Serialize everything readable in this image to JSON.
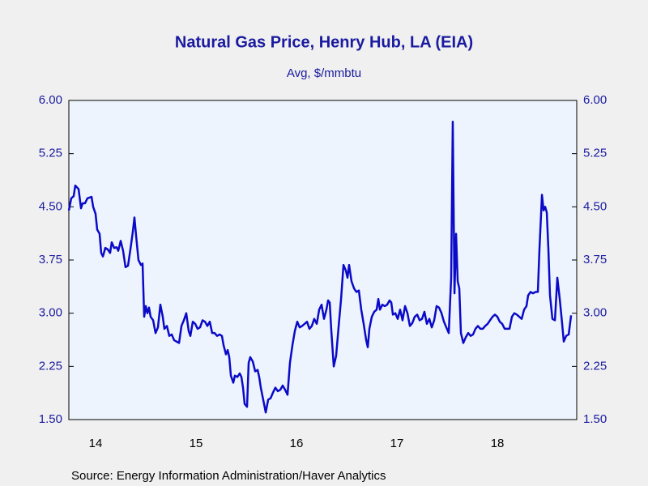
{
  "chart_data": {
    "type": "line",
    "title": "Natural Gas Price, Henry Hub, LA (EIA)",
    "subtitle": "Avg, $/mmbtu",
    "source": "Source:  Energy Information Administration/Haver Analytics",
    "xlim": [
      2014.234,
      2019.29
    ],
    "xticks": [
      {
        "value": 2014.5,
        "label": "14"
      },
      {
        "value": 2015.5,
        "label": "15"
      },
      {
        "value": 2016.5,
        "label": "16"
      },
      {
        "value": 2017.5,
        "label": "17"
      },
      {
        "value": 2018.5,
        "label": "18"
      }
    ],
    "ylim": [
      1.5,
      6
    ],
    "yticks": [
      {
        "value": 1.5,
        "label": "1.50"
      },
      {
        "value": 2.25,
        "label": "2.25"
      },
      {
        "value": 3,
        "label": "3.00"
      },
      {
        "value": 3.75,
        "label": "3.75"
      },
      {
        "value": 4.5,
        "label": "4.50"
      },
      {
        "value": 5.25,
        "label": "5.25"
      },
      {
        "value": 6,
        "label": "6.00"
      }
    ],
    "grid": false,
    "x": [
      2014.234,
      2014.258,
      2014.282,
      2014.298,
      2014.331,
      2014.355,
      2014.371,
      2014.395,
      2014.419,
      2014.46,
      2014.476,
      2014.5,
      2014.516,
      2014.54,
      2014.556,
      2014.573,
      2014.597,
      2014.621,
      2014.645,
      2014.661,
      2014.685,
      2014.71,
      2014.726,
      2014.75,
      2014.774,
      2014.798,
      2014.823,
      2014.847,
      2014.871,
      2014.887,
      2014.903,
      2014.927,
      2014.952,
      2014.968,
      2014.984,
      2015.0,
      2015.016,
      2015.032,
      2015.048,
      2015.073,
      2015.097,
      2015.121,
      2015.145,
      2015.169,
      2015.185,
      2015.21,
      2015.234,
      2015.258,
      2015.282,
      2015.306,
      2015.331,
      2015.355,
      2015.379,
      2015.403,
      2015.427,
      2015.444,
      2015.468,
      2015.492,
      2015.516,
      2015.54,
      2015.565,
      2015.589,
      2015.613,
      2015.637,
      2015.661,
      2015.685,
      2015.71,
      2015.734,
      2015.758,
      2015.774,
      2015.798,
      2015.815,
      2015.831,
      2015.847,
      2015.871,
      2015.887,
      2015.911,
      2015.935,
      2015.952,
      2015.968,
      2015.984,
      2016.008,
      2016.024,
      2016.04,
      2016.065,
      2016.089,
      2016.113,
      2016.129,
      2016.145,
      2016.169,
      2016.194,
      2016.218,
      2016.242,
      2016.266,
      2016.29,
      2016.315,
      2016.339,
      2016.363,
      2016.387,
      2016.411,
      2016.435,
      2016.46,
      2016.484,
      2016.508,
      2016.532,
      2016.556,
      2016.581,
      2016.605,
      2016.629,
      2016.653,
      2016.677,
      2016.702,
      2016.726,
      2016.75,
      2016.774,
      2016.798,
      2016.815,
      2016.831,
      2016.847,
      2016.871,
      2016.895,
      2016.919,
      2016.944,
      2016.968,
      2016.992,
      2017.008,
      2017.024,
      2017.048,
      2017.073,
      2017.097,
      2017.121,
      2017.145,
      2017.169,
      2017.194,
      2017.21,
      2017.226,
      2017.25,
      2017.274,
      2017.298,
      2017.315,
      2017.331,
      2017.355,
      2017.379,
      2017.403,
      2017.427,
      2017.444,
      2017.46,
      2017.484,
      2017.508,
      2017.532,
      2017.556,
      2017.581,
      2017.605,
      2017.629,
      2017.653,
      2017.677,
      2017.702,
      2017.726,
      2017.75,
      2017.774,
      2017.798,
      2017.823,
      2017.847,
      2017.871,
      2017.895,
      2017.919,
      2017.944,
      2017.968,
      2017.992,
      2018.016,
      2018.04,
      2018.056,
      2018.073,
      2018.089,
      2018.105,
      2018.121,
      2018.137,
      2018.161,
      2018.185,
      2018.21,
      2018.234,
      2018.258,
      2018.282,
      2018.306,
      2018.331,
      2018.355,
      2018.379,
      2018.403,
      2018.427,
      2018.452,
      2018.476,
      2018.5,
      2018.524,
      2018.548,
      2018.573,
      2018.597,
      2018.621,
      2018.645,
      2018.669,
      2018.694,
      2018.718,
      2018.742,
      2018.766,
      2018.79,
      2018.806,
      2018.831,
      2018.855,
      2018.879,
      2018.903,
      2018.919,
      2018.944,
      2018.96,
      2018.976,
      2018.992,
      2019.008,
      2019.024,
      2019.048,
      2019.073,
      2019.097,
      2019.121,
      2019.145,
      2019.161,
      2019.185,
      2019.21,
      2019.234
    ],
    "series": [
      {
        "color": "#0a0ac8",
        "values": [
          4.45,
          4.62,
          4.65,
          4.8,
          4.75,
          4.48,
          4.55,
          4.55,
          4.62,
          4.64,
          4.5,
          4.4,
          4.18,
          4.12,
          3.85,
          3.8,
          3.92,
          3.9,
          3.85,
          4.0,
          3.92,
          3.93,
          3.88,
          4.02,
          3.88,
          3.65,
          3.67,
          3.9,
          4.15,
          4.35,
          4.1,
          3.75,
          3.68,
          3.7,
          2.95,
          3.1,
          3.0,
          3.08,
          2.95,
          2.9,
          2.72,
          2.8,
          3.12,
          2.95,
          2.78,
          2.82,
          2.68,
          2.7,
          2.62,
          2.6,
          2.58,
          2.82,
          2.9,
          3.0,
          2.75,
          2.68,
          2.88,
          2.85,
          2.78,
          2.8,
          2.9,
          2.88,
          2.82,
          2.88,
          2.72,
          2.72,
          2.68,
          2.7,
          2.68,
          2.55,
          2.42,
          2.48,
          2.38,
          2.12,
          2.02,
          2.12,
          2.1,
          2.15,
          2.1,
          1.95,
          1.72,
          1.68,
          2.3,
          2.38,
          2.32,
          2.18,
          2.2,
          2.1,
          1.95,
          1.78,
          1.6,
          1.78,
          1.8,
          1.88,
          1.95,
          1.9,
          1.92,
          1.98,
          1.92,
          1.85,
          2.3,
          2.55,
          2.75,
          2.88,
          2.8,
          2.82,
          2.85,
          2.88,
          2.78,
          2.82,
          2.92,
          2.85,
          3.05,
          3.12,
          2.92,
          3.05,
          3.18,
          3.15,
          2.75,
          2.25,
          2.4,
          2.8,
          3.2,
          3.68,
          3.6,
          3.5,
          3.68,
          3.45,
          3.35,
          3.3,
          3.32,
          3.05,
          2.85,
          2.62,
          2.52,
          2.78,
          2.95,
          3.02,
          3.05,
          3.2,
          3.05,
          3.12,
          3.1,
          3.12,
          3.18,
          3.15,
          2.98,
          3.0,
          2.92,
          3.05,
          2.9,
          3.1,
          3.0,
          2.82,
          2.86,
          2.95,
          2.98,
          2.9,
          2.92,
          3.02,
          2.85,
          2.92,
          2.8,
          2.9,
          3.1,
          3.08,
          3.0,
          2.88,
          2.8,
          2.72,
          3.5,
          5.7,
          3.28,
          4.12,
          3.45,
          3.35,
          2.72,
          2.58,
          2.66,
          2.72,
          2.68,
          2.7,
          2.78,
          2.82,
          2.78,
          2.78,
          2.82,
          2.85,
          2.9,
          2.95,
          2.98,
          2.95,
          2.88,
          2.85,
          2.78,
          2.78,
          2.78,
          2.95,
          3.0,
          2.98,
          2.95,
          2.92,
          3.05,
          3.1,
          3.25,
          3.3,
          3.28,
          3.3,
          3.3,
          3.9,
          4.67,
          4.45,
          4.5,
          4.42,
          3.9,
          3.25,
          2.92,
          2.9,
          3.5,
          3.2,
          2.85,
          2.6,
          2.68,
          2.7,
          2.97
        ]
      }
    ]
  }
}
